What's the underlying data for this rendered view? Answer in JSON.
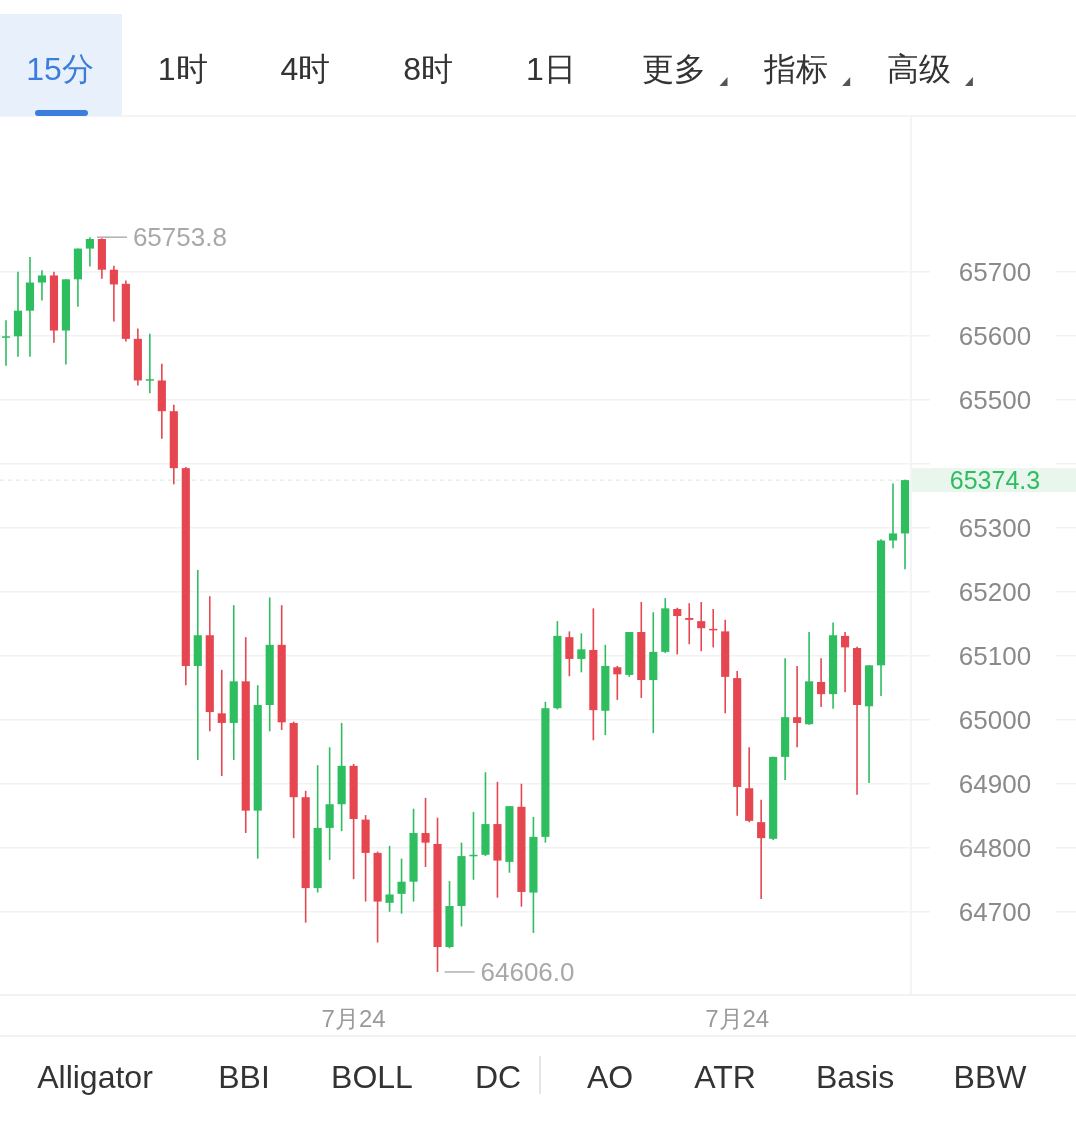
{
  "chart_data": {
    "type": "candlestick",
    "grid": "y",
    "ylim": [
      64570,
      65940
    ],
    "yticks": [
      64700,
      64800,
      64900,
      65000,
      65100,
      65200,
      65300,
      {
        "value": 65400,
        "label": null
      },
      65500,
      65600,
      65700
    ],
    "categories": [
      null,
      null,
      null,
      null,
      null,
      null,
      null,
      null,
      null,
      null,
      null,
      null,
      null,
      null,
      null,
      null,
      null,
      null,
      null,
      null,
      null,
      null,
      null,
      null,
      null,
      null,
      null,
      null,
      null,
      "7月24",
      null,
      null,
      null,
      null,
      null,
      null,
      null,
      null,
      null,
      null,
      null,
      null,
      null,
      null,
      null,
      null,
      null,
      null,
      null,
      null,
      null,
      null,
      null,
      null,
      null,
      null,
      null,
      null,
      null,
      null,
      null,
      "7月24",
      null,
      null,
      null,
      null,
      null,
      null,
      null,
      null,
      null,
      null,
      null,
      null,
      null,
      null
    ],
    "ohlc": [
      [
        65597,
        65624,
        65553,
        65599
      ],
      [
        65599,
        65700,
        65567,
        65639
      ],
      [
        65639,
        65723,
        65567,
        65683
      ],
      [
        65683,
        65702,
        65655,
        65694
      ],
      [
        65694,
        65700,
        65589,
        65608
      ],
      [
        65608,
        65688,
        65555,
        65688
      ],
      [
        65688,
        65736,
        65645,
        65736
      ],
      [
        65736,
        65753.8,
        65708,
        65751
      ],
      [
        65751,
        65752,
        65689,
        65703
      ],
      [
        65703,
        65709,
        65622,
        65680
      ],
      [
        65681,
        65686,
        65591,
        65595
      ],
      [
        65595,
        65611,
        65522,
        65530
      ],
      [
        65530,
        65603,
        65510,
        65532
      ],
      [
        65530,
        65556,
        65439,
        65482
      ],
      [
        65482,
        65492,
        65368,
        65393
      ],
      [
        65393,
        65395,
        65054,
        65084
      ],
      [
        65084,
        65234,
        64937,
        65132
      ],
      [
        65132,
        65193,
        64982,
        65012
      ],
      [
        65010,
        65078,
        64912,
        64995
      ],
      [
        64995,
        65179,
        64937,
        65060
      ],
      [
        65060,
        65129,
        64823,
        64858
      ],
      [
        64858,
        65054,
        64783,
        65023
      ],
      [
        65023,
        65191,
        64982,
        65117
      ],
      [
        65117,
        65179,
        64984,
        64996
      ],
      [
        64995,
        64997,
        64815,
        64879
      ],
      [
        64879,
        64889,
        64683,
        64737
      ],
      [
        64737,
        64929,
        64730,
        64831
      ],
      [
        64831,
        64957,
        64781,
        64868
      ],
      [
        64868,
        64995,
        64826,
        64928
      ],
      [
        64928,
        64931,
        64751,
        64845
      ],
      [
        64844,
        64851,
        64716,
        64792
      ],
      [
        64792,
        64794,
        64652,
        64716
      ],
      [
        64714,
        64803,
        64700,
        64727
      ],
      [
        64728,
        64783,
        64697,
        64747
      ],
      [
        64747,
        64861,
        64716,
        64823
      ],
      [
        64823,
        64878,
        64770,
        64808
      ],
      [
        64806,
        64847,
        64606.0,
        64645
      ],
      [
        64645,
        64748,
        64643,
        64709
      ],
      [
        64709,
        64808,
        64677,
        64787
      ],
      [
        64787,
        64856,
        64750,
        64789
      ],
      [
        64789,
        64918,
        64787,
        64837
      ],
      [
        64837,
        64903,
        64722,
        64780
      ],
      [
        64778,
        64865,
        64761,
        64865
      ],
      [
        64864,
        64900,
        64708,
        64731
      ],
      [
        64730,
        64848,
        64667,
        64817
      ],
      [
        64817,
        65028,
        64808,
        65018
      ],
      [
        65018,
        65154,
        65016,
        65131
      ],
      [
        65129,
        65138,
        65068,
        65095
      ],
      [
        65095,
        65135,
        65074,
        65110
      ],
      [
        65109,
        65174,
        64968,
        65015
      ],
      [
        65014,
        65117,
        64976,
        65084
      ],
      [
        65082,
        65084,
        65031,
        65071
      ],
      [
        65070,
        65137,
        65067,
        65137
      ],
      [
        65137,
        65184,
        65034,
        65062
      ],
      [
        65062,
        65168,
        64979,
        65106
      ],
      [
        65106,
        65190,
        65104,
        65174
      ],
      [
        65173,
        65175,
        65102,
        65162
      ],
      [
        65159,
        65182,
        65118,
        65156
      ],
      [
        65154,
        65184,
        65107,
        65143
      ],
      [
        65142,
        65173,
        65113,
        65140
      ],
      [
        65138,
        65156,
        65010,
        65067
      ],
      [
        65065,
        65076,
        64850,
        64895
      ],
      [
        64893,
        64957,
        64840,
        64842
      ],
      [
        64840,
        64875,
        64720,
        64815
      ],
      [
        64814,
        64942,
        64812,
        64942
      ],
      [
        64942,
        65096,
        64906,
        65004
      ],
      [
        65004,
        65084,
        64957,
        64995
      ],
      [
        64993,
        65137,
        64992,
        65060
      ],
      [
        65059,
        65096,
        65020,
        65040
      ],
      [
        65040,
        65152,
        65017,
        65132
      ],
      [
        65131,
        65137,
        65043,
        65113
      ],
      [
        65112,
        65114,
        64883,
        65023
      ],
      [
        65021,
        65085,
        64901,
        65085
      ],
      [
        65085,
        65282,
        65037,
        65280
      ],
      [
        65280,
        65369,
        65268,
        65291
      ],
      [
        65291,
        65375,
        65235,
        65374.3
      ]
    ],
    "colors": [
      "#2ebd5f",
      "#2ebd5f",
      "#2ebd5f",
      "#2ebd5f",
      "#e5464f",
      "#2ebd5f",
      "#2ebd5f",
      "#2ebd5f",
      "#e5464f",
      "#e5464f",
      "#e5464f",
      "#e5464f",
      "#2ebd5f",
      "#e5464f",
      "#e5464f",
      "#e5464f",
      "#2ebd5f",
      "#e5464f",
      "#e5464f",
      "#2ebd5f",
      "#e5464f",
      "#2ebd5f",
      "#2ebd5f",
      "#e5464f",
      "#e5464f",
      "#e5464f",
      "#2ebd5f",
      "#2ebd5f",
      "#2ebd5f",
      "#e5464f",
      "#e5464f",
      "#e5464f",
      "#2ebd5f",
      "#2ebd5f",
      "#2ebd5f",
      "#e5464f",
      "#e5464f",
      "#2ebd5f",
      "#2ebd5f",
      "#2ebd5f",
      "#2ebd5f",
      "#e5464f",
      "#2ebd5f",
      "#e5464f",
      "#2ebd5f",
      "#2ebd5f",
      "#2ebd5f",
      "#e5464f",
      "#2ebd5f",
      "#e5464f",
      "#2ebd5f",
      "#e5464f",
      "#2ebd5f",
      "#e5464f",
      "#2ebd5f",
      "#2ebd5f",
      "#e5464f",
      "#e5464f",
      "#e5464f",
      "#e5464f",
      "#e5464f",
      "#e5464f",
      "#e5464f",
      "#e5464f",
      "#2ebd5f",
      "#2ebd5f",
      "#e5464f",
      "#2ebd5f",
      "#e5464f",
      "#2ebd5f",
      "#e5464f",
      "#e5464f",
      "#2ebd5f",
      "#2ebd5f",
      "#2ebd5f",
      "#2ebd5f"
    ],
    "ref_lines": [
      {
        "axis": "y",
        "value": 65374.3,
        "label": "65374.3",
        "color": "#2ebd5f"
      }
    ],
    "annotations": [
      "15分",
      "1时",
      "4时",
      "8时",
      "1日",
      "更多",
      "指标",
      "高级",
      "65753.8",
      "64606.0",
      "Alligator",
      "BBI",
      "BOLL",
      "DC",
      "AO",
      "ATR",
      "Basis",
      "BBW"
    ]
  }
}
